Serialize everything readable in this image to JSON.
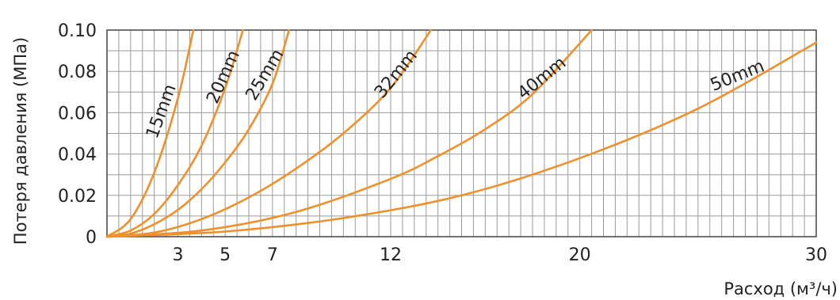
{
  "chart_data": {
    "type": "line",
    "xlabel": "Расход (м³/ч)",
    "ylabel": "Потеря давления (МПа)",
    "xlim": [
      0,
      30
    ],
    "ylim": [
      0,
      0.1
    ],
    "x_ticks": [
      "3",
      "5",
      "7",
      "12",
      "20",
      "30"
    ],
    "y_ticks": [
      "0",
      "0.02",
      "0.04",
      "0.06",
      "0.08",
      "0.10"
    ],
    "grid": true,
    "line_color": "#f0902a",
    "series": [
      {
        "name": "15mm",
        "x": [
          0,
          1,
          2,
          3,
          3.65
        ],
        "y": [
          0,
          0.0085,
          0.031,
          0.067,
          0.1
        ]
      },
      {
        "name": "20mm",
        "x": [
          0,
          1,
          2,
          3,
          4,
          5,
          5.75
        ],
        "y": [
          0,
          0.003,
          0.011,
          0.025,
          0.044,
          0.072,
          0.1
        ]
      },
      {
        "name": "25mm",
        "x": [
          0,
          1,
          2,
          3,
          4,
          5,
          6,
          7,
          7.7
        ],
        "y": [
          0,
          0.0015,
          0.006,
          0.013,
          0.023,
          0.036,
          0.052,
          0.074,
          0.1
        ]
      },
      {
        "name": "32mm",
        "x": [
          0,
          2,
          4,
          6,
          8,
          10,
          12,
          13.7
        ],
        "y": [
          0,
          0.002,
          0.0085,
          0.019,
          0.033,
          0.05,
          0.072,
          0.1
        ]
      },
      {
        "name": "40mm",
        "x": [
          0,
          4,
          8,
          12,
          14,
          16,
          18,
          20.5
        ],
        "y": [
          0,
          0.003,
          0.012,
          0.028,
          0.039,
          0.052,
          0.069,
          0.1
        ]
      },
      {
        "name": "50mm",
        "x": [
          0,
          5,
          10,
          15,
          20,
          25,
          30
        ],
        "y": [
          0,
          0.0025,
          0.009,
          0.02,
          0.038,
          0.062,
          0.094
        ]
      }
    ]
  }
}
